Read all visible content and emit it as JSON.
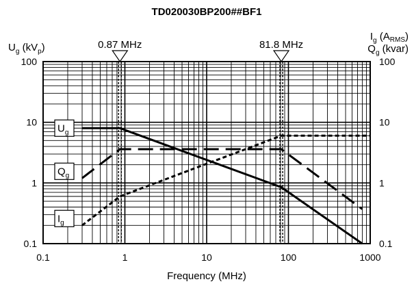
{
  "chart_data": {
    "type": "line",
    "title": "TD020030BP200##BF1",
    "xlabel": "Frequency (MHz)",
    "x_scale": "log",
    "y_scale": "log",
    "xlim": [
      0.1,
      1000
    ],
    "ylim": [
      0.1,
      100
    ],
    "x_tick_labels": [
      "0.1",
      "1",
      "10",
      "100",
      "1000"
    ],
    "y_tick_labels": [
      "0.1",
      "1",
      "10",
      "100"
    ],
    "grid": true,
    "left_axis_label": {
      "base": "U",
      "sub": "g",
      "mid": " (kV",
      "sub2": "p",
      "end": ")"
    },
    "right_axis_label_line1": {
      "base": "I",
      "sub": "g",
      "mid": " (A",
      "sub2": "RMS",
      "end": ")"
    },
    "right_axis_label_line2": {
      "base": "Q",
      "sub": "g",
      "mid": " (kvar)"
    },
    "markers": [
      {
        "label": "0.87 MHz",
        "x": 0.87
      },
      {
        "label": "81.8 MHz",
        "x": 81.8
      }
    ],
    "series": [
      {
        "name": "Ug",
        "label_base": "U",
        "label_sub": "g",
        "style": "solid",
        "x": [
          0.3,
          0.87,
          81.8,
          800
        ],
        "y": [
          8.0,
          8.0,
          0.85,
          0.1
        ]
      },
      {
        "name": "Qg",
        "label_base": "Q",
        "label_sub": "g",
        "style": "dashed",
        "x": [
          0.3,
          0.87,
          81.8,
          800
        ],
        "y": [
          1.2,
          3.6,
          3.6,
          0.37
        ]
      },
      {
        "name": "Ig",
        "label_base": "I",
        "label_sub": "g",
        "style": "dotted",
        "x": [
          0.3,
          0.87,
          81.8,
          1000
        ],
        "y": [
          0.2,
          0.6,
          6.0,
          6.0
        ]
      }
    ]
  }
}
